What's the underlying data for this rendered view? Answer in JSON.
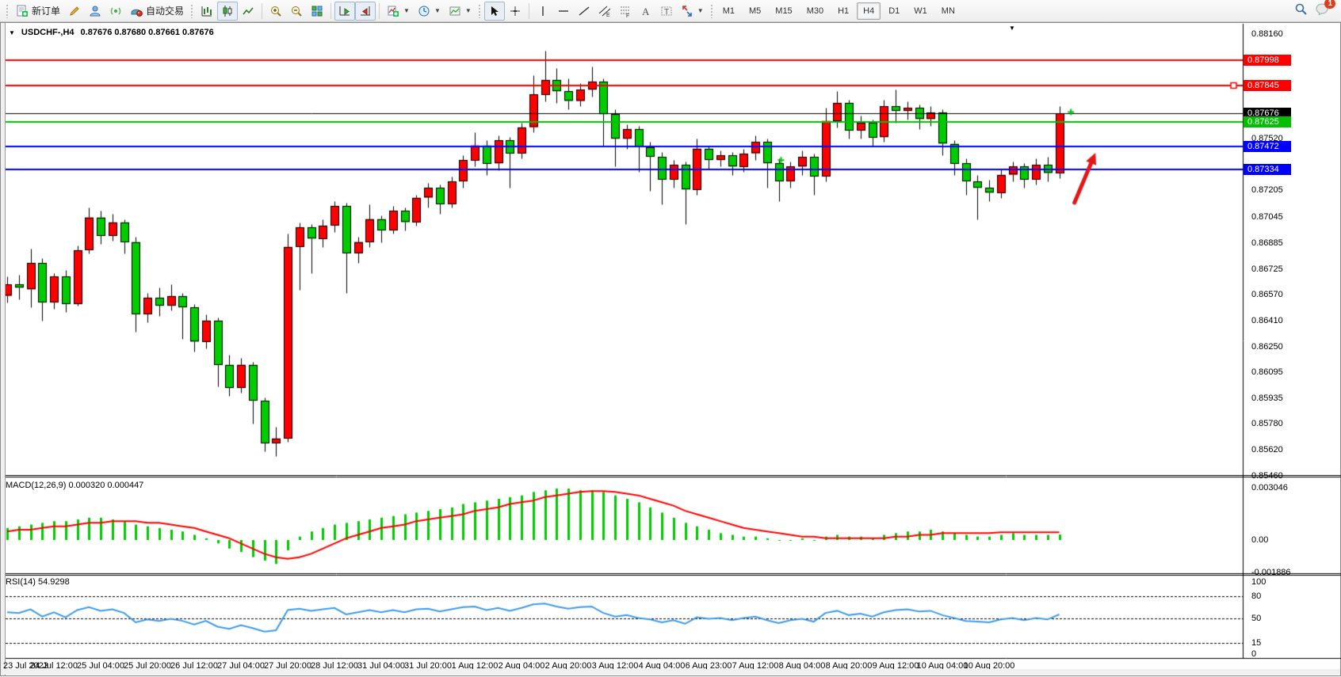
{
  "toolbar": {
    "new_order_label": "新订单",
    "autotrade_label": "自动交易",
    "timeframes": [
      "M1",
      "M5",
      "M15",
      "M30",
      "H1",
      "H4",
      "D1",
      "W1",
      "MN"
    ],
    "active_timeframe": "H4",
    "notification_count": "1"
  },
  "chart": {
    "quote": {
      "symbol": "USDCHF-,H4",
      "ohlc": "0.87676 0.87680 0.87661 0.87676"
    },
    "indicators": {
      "macd_label": "MACD(12,26,9)",
      "macd_values": "0.000320 0.000447",
      "rsi_label": "RSI(14)",
      "rsi_value": "54.9298"
    }
  },
  "chart_data": {
    "type": "candlestick",
    "symbol": "USDCHF",
    "period": "H4",
    "title": "USDCHF-,H4",
    "x_labels": [
      "23 Jul 2023",
      "24 Jul 12:00",
      "25 Jul 04:00",
      "25 Jul 20:00",
      "26 Jul 12:00",
      "27 Jul 04:00",
      "27 Jul 20:00",
      "28 Jul 12:00",
      "31 Jul 04:00",
      "31 Jul 20:00",
      "1 Aug 12:00",
      "2 Aug 04:00",
      "2 Aug 20:00",
      "3 Aug 12:00",
      "4 Aug 04:00",
      "6 Aug 23:00",
      "7 Aug 12:00",
      "8 Aug 04:00",
      "8 Aug 20:00",
      "9 Aug 12:00",
      "10 Aug 04:00",
      "10 Aug 20:00"
    ],
    "candles_per_label": 4,
    "colors": {
      "bull": "#FF0000",
      "bear": "#00CC00",
      "wick": "#000000",
      "macd_hist": "#00CC00",
      "macd_signal": "#FF0000",
      "rsi_line": "#3D9BE9",
      "line_red": "#FF0000",
      "line_green": "#00C000",
      "line_blue": "#0000FF",
      "bid_line": "#000000",
      "arrow": "#E01818",
      "marker": "#00C000"
    },
    "candles": [
      [
        0.8656,
        0.8668,
        0.8652,
        0.8663
      ],
      [
        0.8663,
        0.8669,
        0.8654,
        0.8661
      ],
      [
        0.866,
        0.8685,
        0.8649,
        0.8676
      ],
      [
        0.8676,
        0.8679,
        0.8641,
        0.8652
      ],
      [
        0.8652,
        0.867,
        0.8648,
        0.8668
      ],
      [
        0.8668,
        0.8672,
        0.8646,
        0.8651
      ],
      [
        0.8651,
        0.8687,
        0.865,
        0.8684
      ],
      [
        0.8684,
        0.871,
        0.8682,
        0.8704
      ],
      [
        0.8704,
        0.8708,
        0.8688,
        0.8693
      ],
      [
        0.8693,
        0.8706,
        0.869,
        0.8701
      ],
      [
        0.8701,
        0.8703,
        0.8682,
        0.8689
      ],
      [
        0.8689,
        0.8692,
        0.8634,
        0.8645
      ],
      [
        0.8645,
        0.8658,
        0.864,
        0.8655
      ],
      [
        0.8655,
        0.8661,
        0.8644,
        0.865
      ],
      [
        0.865,
        0.8663,
        0.8647,
        0.8656
      ],
      [
        0.8656,
        0.8658,
        0.863,
        0.8649
      ],
      [
        0.8649,
        0.8651,
        0.8622,
        0.8628
      ],
      [
        0.8628,
        0.8645,
        0.8624,
        0.8641
      ],
      [
        0.8641,
        0.8643,
        0.8601,
        0.8614
      ],
      [
        0.8614,
        0.862,
        0.8595,
        0.86
      ],
      [
        0.86,
        0.8618,
        0.8597,
        0.8614
      ],
      [
        0.8614,
        0.8616,
        0.8578,
        0.8592
      ],
      [
        0.8592,
        0.8594,
        0.8561,
        0.8566
      ],
      [
        0.8566,
        0.8576,
        0.8558,
        0.8569
      ],
      [
        0.8569,
        0.8694,
        0.8567,
        0.8686
      ],
      [
        0.8686,
        0.8701,
        0.866,
        0.8698
      ],
      [
        0.8698,
        0.87,
        0.867,
        0.8691
      ],
      [
        0.8691,
        0.8703,
        0.8686,
        0.8699
      ],
      [
        0.8699,
        0.8714,
        0.8695,
        0.8711
      ],
      [
        0.8711,
        0.8713,
        0.8658,
        0.8682
      ],
      [
        0.8682,
        0.8692,
        0.8676,
        0.8689
      ],
      [
        0.8689,
        0.8712,
        0.8686,
        0.8703
      ],
      [
        0.8703,
        0.8705,
        0.8689,
        0.8696
      ],
      [
        0.8696,
        0.8711,
        0.8694,
        0.8708
      ],
      [
        0.8708,
        0.871,
        0.8696,
        0.8701
      ],
      [
        0.8701,
        0.8718,
        0.8699,
        0.8716
      ],
      [
        0.8716,
        0.8725,
        0.871,
        0.8722
      ],
      [
        0.8722,
        0.8724,
        0.8706,
        0.8712
      ],
      [
        0.8712,
        0.8729,
        0.871,
        0.8726
      ],
      [
        0.8726,
        0.8742,
        0.8722,
        0.8739
      ],
      [
        0.8739,
        0.8756,
        0.8735,
        0.8748
      ],
      [
        0.8748,
        0.8751,
        0.873,
        0.8737
      ],
      [
        0.8737,
        0.8754,
        0.8733,
        0.8751
      ],
      [
        0.8751,
        0.8753,
        0.8722,
        0.8743
      ],
      [
        0.8743,
        0.8762,
        0.874,
        0.8759
      ],
      [
        0.8759,
        0.8791,
        0.8756,
        0.8779
      ],
      [
        0.8779,
        0.8806,
        0.8775,
        0.8788
      ],
      [
        0.8788,
        0.8795,
        0.8774,
        0.8781
      ],
      [
        0.8781,
        0.8789,
        0.877,
        0.8775
      ],
      [
        0.8775,
        0.8786,
        0.8772,
        0.8782
      ],
      [
        0.8782,
        0.8796,
        0.8778,
        0.8787
      ],
      [
        0.8787,
        0.8789,
        0.8748,
        0.8767
      ],
      [
        0.8767,
        0.877,
        0.8735,
        0.8752
      ],
      [
        0.8752,
        0.8761,
        0.8746,
        0.8758
      ],
      [
        0.8758,
        0.876,
        0.8732,
        0.8747
      ],
      [
        0.8747,
        0.875,
        0.872,
        0.8741
      ],
      [
        0.8741,
        0.8744,
        0.8712,
        0.8727
      ],
      [
        0.8727,
        0.8739,
        0.8722,
        0.8736
      ],
      [
        0.8736,
        0.8738,
        0.87,
        0.8721
      ],
      [
        0.8721,
        0.8752,
        0.8718,
        0.8746
      ],
      [
        0.8746,
        0.8748,
        0.8734,
        0.8739
      ],
      [
        0.8739,
        0.8745,
        0.8735,
        0.8742
      ],
      [
        0.8742,
        0.8744,
        0.873,
        0.8735
      ],
      [
        0.8735,
        0.8746,
        0.8732,
        0.8743
      ],
      [
        0.8743,
        0.8754,
        0.8739,
        0.875
      ],
      [
        0.875,
        0.8752,
        0.8722,
        0.8737
      ],
      [
        0.8737,
        0.874,
        0.8714,
        0.8726
      ],
      [
        0.8726,
        0.8738,
        0.8722,
        0.8735
      ],
      [
        0.8735,
        0.8745,
        0.873,
        0.8741
      ],
      [
        0.8741,
        0.8743,
        0.8718,
        0.8729
      ],
      [
        0.8729,
        0.8771,
        0.8726,
        0.8763
      ],
      [
        0.8763,
        0.8781,
        0.8759,
        0.8774
      ],
      [
        0.8774,
        0.8776,
        0.8752,
        0.8757
      ],
      [
        0.8757,
        0.8766,
        0.8752,
        0.8762
      ],
      [
        0.8762,
        0.8764,
        0.8748,
        0.8753
      ],
      [
        0.8753,
        0.8776,
        0.875,
        0.8772
      ],
      [
        0.8772,
        0.8782,
        0.8762,
        0.8769
      ],
      [
        0.8769,
        0.8775,
        0.8764,
        0.8771
      ],
      [
        0.8771,
        0.8773,
        0.8758,
        0.8764
      ],
      [
        0.8764,
        0.8772,
        0.876,
        0.8768
      ],
      [
        0.8768,
        0.877,
        0.8742,
        0.8749
      ],
      [
        0.8749,
        0.8751,
        0.873,
        0.8737
      ],
      [
        0.8737,
        0.874,
        0.8718,
        0.8726
      ],
      [
        0.8726,
        0.873,
        0.8703,
        0.8722
      ],
      [
        0.8722,
        0.8727,
        0.8714,
        0.8719
      ],
      [
        0.8719,
        0.8734,
        0.8716,
        0.873
      ],
      [
        0.873,
        0.8738,
        0.8726,
        0.8735
      ],
      [
        0.8735,
        0.8737,
        0.8722,
        0.8727
      ],
      [
        0.8727,
        0.874,
        0.8724,
        0.8736
      ],
      [
        0.8736,
        0.8741,
        0.8726,
        0.8731
      ],
      [
        0.8731,
        0.8772,
        0.8728,
        0.87676
      ]
    ],
    "price_axis": {
      "visible_range": [
        0.85466,
        0.88218
      ],
      "ticks": [
        "0.88160",
        "0.87520",
        "0.87205",
        "0.87045",
        "0.86885",
        "0.86725",
        "0.86570",
        "0.86410",
        "0.86250",
        "0.86095",
        "0.85935",
        "0.85780",
        "0.85620",
        "0.85460"
      ],
      "badges": [
        {
          "label": "0.87998",
          "price": 0.87998,
          "bg": "#FF0000"
        },
        {
          "label": "0.87845",
          "price": 0.87845,
          "bg": "#FF0000"
        },
        {
          "label": "0.87676",
          "price": 0.87676,
          "bg": "#000000"
        },
        {
          "label": "0.87625",
          "price": 0.87625,
          "bg": "#00C000"
        },
        {
          "label": "0.87472",
          "price": 0.87472,
          "bg": "#0000FF"
        },
        {
          "label": "0.87334",
          "price": 0.87334,
          "bg": "#0000FF"
        }
      ]
    },
    "hlines": [
      {
        "price": 0.87998,
        "color": "#FF0000",
        "width": 2
      },
      {
        "price": 0.87845,
        "color": "#FF0000",
        "width": 2,
        "handle": true
      },
      {
        "price": 0.87625,
        "color": "#00C000",
        "width": 2
      },
      {
        "price": 0.87472,
        "color": "#0000FF",
        "width": 2
      },
      {
        "price": 0.87334,
        "color": "#0000FF",
        "width": 2
      }
    ],
    "bid_line": {
      "price": 0.87676,
      "color": "#000000",
      "width": 1
    },
    "arrow": {
      "from": {
        "candle": 91.3,
        "price": 0.8713
      },
      "to": {
        "candle": 93.1,
        "price": 0.87435
      }
    },
    "markers": [
      {
        "candle": 91.0,
        "price": 0.87684
      },
      {
        "candle": 66.2,
        "price": 0.8739
      }
    ],
    "macd": {
      "label": "MACD(12,26,9)",
      "current_macd": 0.00032,
      "current_signal": 0.000447,
      "ticks": [
        {
          "label": "0.003046",
          "value": 0.003046
        },
        {
          "label": "0.00",
          "value": 0
        },
        {
          "label": "-0.001886",
          "value": -0.001886
        }
      ],
      "histogram": [
        0.0007,
        0.0008,
        0.0009,
        0.001,
        0.0011,
        0.0011,
        0.0012,
        0.0013,
        0.0013,
        0.0012,
        0.0011,
        0.0009,
        0.0008,
        0.0007,
        0.0006,
        0.0005,
        0.0003,
        0.0001,
        -0.0002,
        -0.0005,
        -0.0007,
        -0.001,
        -0.0012,
        -0.0014,
        -0.0006,
        0.0002,
        0.0005,
        0.0007,
        0.0009,
        0.001,
        0.0011,
        0.0012,
        0.0013,
        0.0014,
        0.0015,
        0.0016,
        0.0017,
        0.0018,
        0.0019,
        0.0021,
        0.0022,
        0.0023,
        0.0024,
        0.0025,
        0.0026,
        0.0028,
        0.0029,
        0.003,
        0.003,
        0.0029,
        0.0029,
        0.0028,
        0.0026,
        0.0024,
        0.0022,
        0.0019,
        0.0016,
        0.0013,
        0.001,
        0.0008,
        0.0006,
        0.0004,
        0.0003,
        0.0002,
        0.0002,
        0.0001,
        0.0,
        0.0,
        0.0001,
        0.0,
        0.0002,
        0.0003,
        0.0002,
        0.0002,
        0.0001,
        0.0003,
        0.0004,
        0.0005,
        0.0005,
        0.0006,
        0.0005,
        0.0004,
        0.0003,
        0.0002,
        0.0002,
        0.0003,
        0.0004,
        0.0003,
        0.0003,
        0.0003,
        0.00032
      ],
      "signal": [
        0.0005,
        0.0006,
        0.0006,
        0.0007,
        0.0008,
        0.0008,
        0.0009,
        0.001,
        0.001,
        0.0011,
        0.0011,
        0.0011,
        0.001,
        0.001,
        0.0009,
        0.0008,
        0.0007,
        0.0005,
        0.0003,
        0.0001,
        -0.0002,
        -0.0005,
        -0.0008,
        -0.001,
        -0.0011,
        -0.001,
        -0.0008,
        -0.0005,
        -0.0002,
        0.0001,
        0.0003,
        0.0005,
        0.0007,
        0.0008,
        0.0009,
        0.0011,
        0.0012,
        0.0013,
        0.0014,
        0.0015,
        0.0017,
        0.0018,
        0.0019,
        0.0021,
        0.0022,
        0.0023,
        0.0025,
        0.0026,
        0.0027,
        0.0028,
        0.00285,
        0.00285,
        0.0028,
        0.0027,
        0.0026,
        0.0024,
        0.0022,
        0.002,
        0.0017,
        0.0015,
        0.0013,
        0.0011,
        0.0009,
        0.0007,
        0.0006,
        0.0005,
        0.0004,
        0.0003,
        0.0002,
        0.0002,
        0.0001,
        0.0001,
        0.0001,
        0.0001,
        0.0001,
        0.0001,
        0.0002,
        0.0002,
        0.0003,
        0.0003,
        0.0004,
        0.0004,
        0.0004,
        0.0004,
        0.0004,
        0.00045,
        0.00045,
        0.00045,
        0.00045,
        0.00045,
        0.000447
      ]
    },
    "rsi": {
      "label": "RSI(14)",
      "current": 54.9298,
      "levels": [
        80,
        50,
        15
      ],
      "ticks": [
        {
          "label": "100",
          "value": 100
        },
        {
          "label": "80",
          "value": 80
        },
        {
          "label": "50",
          "value": 50
        },
        {
          "label": "15",
          "value": 15
        },
        {
          "label": "0",
          "value": 0
        }
      ],
      "values": [
        58,
        57,
        62,
        52,
        58,
        51,
        61,
        65,
        60,
        62,
        57,
        44,
        48,
        46,
        49,
        46,
        41,
        46,
        38,
        35,
        40,
        36,
        31,
        33,
        61,
        63,
        60,
        62,
        64,
        55,
        58,
        61,
        58,
        61,
        58,
        62,
        63,
        59,
        62,
        65,
        66,
        61,
        64,
        60,
        64,
        69,
        70,
        66,
        63,
        65,
        66,
        57,
        52,
        54,
        50,
        48,
        44,
        47,
        42,
        51,
        49,
        50,
        47,
        50,
        52,
        47,
        43,
        47,
        49,
        45,
        57,
        60,
        54,
        56,
        52,
        58,
        61,
        62,
        59,
        60,
        54,
        50,
        46,
        45,
        44,
        48,
        50,
        47,
        50,
        48,
        54.93
      ]
    }
  }
}
